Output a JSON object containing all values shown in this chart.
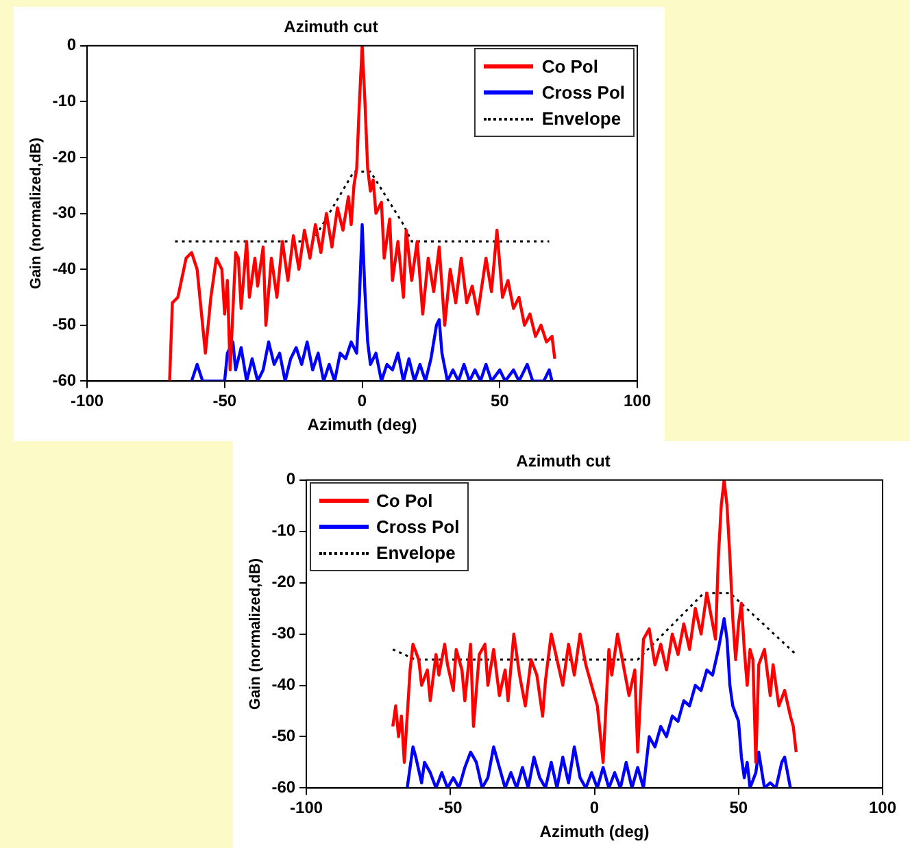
{
  "chart_data": [
    {
      "type": "line",
      "title": "Azimuth cut",
      "xlabel": "Azimuth (deg)",
      "ylabel": "Gain (normalized,dB)",
      "xlim": [
        -100,
        100
      ],
      "xticks": [
        -100,
        -50,
        0,
        50,
        100
      ],
      "ylim": [
        -60,
        0
      ],
      "yticks": [
        -60,
        -50,
        -40,
        -30,
        -20,
        -10,
        0
      ],
      "grid": false,
      "legend": "top right",
      "marker": "none",
      "series": [
        {
          "name": "Co Pol",
          "color": "#ff0000",
          "line_style": "solid",
          "x": [
            -70,
            -69,
            -67,
            -64,
            -62,
            -60,
            -58,
            -57,
            -55,
            -53,
            -51,
            -50,
            -49,
            -48,
            -46,
            -45,
            -44,
            -42,
            -41,
            -39,
            -38,
            -36,
            -35,
            -33,
            -31,
            -29,
            -27,
            -25,
            -23,
            -21,
            -19,
            -17,
            -15,
            -13,
            -11,
            -9,
            -7,
            -5,
            -4,
            -3,
            -2,
            -1,
            0,
            1,
            2,
            3,
            4,
            5,
            7,
            8,
            10,
            11,
            13,
            15,
            16,
            18,
            20,
            22,
            24,
            26,
            28,
            30,
            32,
            34,
            36,
            38,
            40,
            42,
            45,
            47,
            49,
            51,
            53,
            55,
            57,
            59,
            61,
            63,
            65,
            67,
            69,
            70
          ],
          "values": [
            -60,
            -46,
            -45,
            -38,
            -37,
            -40,
            -50,
            -55,
            -45,
            -38,
            -40,
            -48,
            -42,
            -58,
            -37,
            -38,
            -47,
            -35,
            -45,
            -38,
            -43,
            -36,
            -50,
            -38,
            -45,
            -35,
            -42,
            -34,
            -40,
            -33,
            -38,
            -32,
            -37,
            -30,
            -36,
            -29,
            -33,
            -27,
            -32,
            -25,
            -22,
            -10,
            0,
            -10,
            -22,
            -26,
            -24,
            -30,
            -28,
            -38,
            -31,
            -42,
            -35,
            -45,
            -33,
            -42,
            -35,
            -48,
            -38,
            -44,
            -36,
            -50,
            -40,
            -46,
            -38,
            -46,
            -43,
            -48,
            -38,
            -44,
            -33,
            -45,
            -42,
            -47,
            -45,
            -50,
            -48,
            -52,
            -50,
            -53,
            -52,
            -56
          ]
        },
        {
          "name": "Cross Pol",
          "color": "#0000ff",
          "line_style": "solid",
          "x": [
            -62,
            -60,
            -58,
            -50,
            -49,
            -47,
            -46,
            -44,
            -42,
            -40,
            -38,
            -36,
            -34,
            -32,
            -30,
            -28,
            -26,
            -24,
            -22,
            -20,
            -18,
            -16,
            -14,
            -12,
            -10,
            -8,
            -6,
            -4,
            -2,
            -1,
            0,
            1,
            2,
            3,
            5,
            7,
            9,
            11,
            13,
            15,
            17,
            19,
            21,
            23,
            25,
            27,
            28,
            29,
            31,
            33,
            35,
            37,
            39,
            41,
            43,
            45,
            47,
            50,
            52,
            55,
            57,
            60,
            62,
            66,
            68,
            69
          ],
          "values": [
            -60,
            -57,
            -60,
            -60,
            -55,
            -53,
            -58,
            -54,
            -60,
            -56,
            -60,
            -58,
            -53,
            -57,
            -55,
            -60,
            -56,
            -54,
            -57,
            -53,
            -58,
            -55,
            -60,
            -57,
            -60,
            -55,
            -56,
            -53,
            -55,
            -45,
            -32,
            -44,
            -53,
            -57,
            -55,
            -60,
            -57,
            -58,
            -55,
            -60,
            -56,
            -60,
            -57,
            -60,
            -56,
            -50,
            -49,
            -55,
            -60,
            -58,
            -60,
            -57,
            -60,
            -58,
            -60,
            -57,
            -60,
            -58,
            -60,
            -58,
            -60,
            -57,
            -60,
            -60,
            -58,
            -60
          ]
        },
        {
          "name": "Envelope",
          "color": "#000000",
          "line_style": "dotted",
          "x": [
            -68,
            -18,
            -3,
            3,
            15,
            18,
            68
          ],
          "values": [
            -35,
            -35,
            -22.5,
            -22.5,
            -32,
            -35,
            -35
          ]
        }
      ]
    },
    {
      "type": "line",
      "title": "Azimuth cut",
      "xlabel": "Azimuth (deg)",
      "ylabel": "Gain (normalized,dB)",
      "xlim": [
        -100,
        100
      ],
      "xticks": [
        -100,
        -50,
        0,
        50,
        100
      ],
      "ylim": [
        -60,
        0
      ],
      "yticks": [
        -60,
        -50,
        -40,
        -30,
        -20,
        -10,
        0
      ],
      "grid": false,
      "legend": "top left",
      "marker": "none",
      "series": [
        {
          "name": "Co Pol",
          "color": "#ff0000",
          "line_style": "solid",
          "x": [
            -70,
            -69,
            -68,
            -67,
            -66,
            -64,
            -63,
            -61,
            -60,
            -58,
            -57,
            -55,
            -54,
            -52,
            -51,
            -49,
            -48,
            -46,
            -45,
            -43,
            -42,
            -40,
            -38,
            -37,
            -35,
            -33,
            -31,
            -30,
            -28,
            -26,
            -24,
            -22,
            -20,
            -18,
            -17,
            -15,
            -13,
            -11,
            -9,
            -7,
            -5,
            -3,
            -1,
            1,
            3,
            5,
            6,
            8,
            10,
            12,
            14,
            15,
            17,
            19,
            21,
            23,
            25,
            27,
            29,
            31,
            33,
            35,
            37,
            39,
            41,
            42,
            43,
            44,
            45,
            46,
            47,
            48,
            49,
            50,
            51,
            52,
            53,
            54,
            55,
            56,
            57,
            59,
            61,
            62,
            64,
            66,
            68,
            69,
            70
          ],
          "values": [
            -48,
            -44,
            -50,
            -46,
            -55,
            -37,
            -32,
            -35,
            -40,
            -37,
            -43,
            -34,
            -38,
            -32,
            -36,
            -41,
            -33,
            -37,
            -43,
            -32,
            -48,
            -34,
            -32,
            -40,
            -33,
            -42,
            -37,
            -43,
            -30,
            -38,
            -44,
            -35,
            -38,
            -46,
            -39,
            -30,
            -35,
            -40,
            -32,
            -38,
            -30,
            -36,
            -40,
            -44,
            -55,
            -33,
            -38,
            -30,
            -36,
            -42,
            -37,
            -53,
            -31,
            -29,
            -36,
            -32,
            -37,
            -30,
            -34,
            -28,
            -33,
            -25,
            -30,
            -22,
            -28,
            -31,
            -15,
            -5,
            0,
            -5,
            -15,
            -27,
            -35,
            -28,
            -24,
            -33,
            -40,
            -33,
            -35,
            -55,
            -36,
            -33,
            -42,
            -36,
            -44,
            -41,
            -46,
            -48,
            -53
          ]
        },
        {
          "name": "Cross Pol",
          "color": "#0000ff",
          "line_style": "solid",
          "x": [
            -65,
            -64,
            -63,
            -62,
            -60,
            -59,
            -57,
            -55,
            -53,
            -51,
            -49,
            -47,
            -45,
            -43,
            -41,
            -39,
            -37,
            -35,
            -33,
            -31,
            -29,
            -27,
            -25,
            -23,
            -21,
            -19,
            -17,
            -15,
            -13,
            -11,
            -9,
            -7,
            -5,
            -3,
            -1,
            1,
            3,
            5,
            7,
            9,
            11,
            13,
            15,
            17,
            19,
            21,
            23,
            25,
            27,
            29,
            31,
            33,
            35,
            37,
            39,
            41,
            43,
            44,
            45,
            46,
            47,
            48,
            50,
            51,
            52,
            53,
            54,
            56,
            57,
            59,
            61,
            63,
            65,
            66,
            68
          ],
          "values": [
            -60,
            -56,
            -52,
            -54,
            -59,
            -55,
            -57,
            -60,
            -57,
            -60,
            -58,
            -60,
            -56,
            -53,
            -55,
            -60,
            -58,
            -52,
            -56,
            -60,
            -57,
            -60,
            -56,
            -60,
            -54,
            -58,
            -60,
            -55,
            -60,
            -54,
            -59,
            -52,
            -58,
            -60,
            -57,
            -60,
            -56,
            -60,
            -57,
            -60,
            -55,
            -60,
            -56,
            -60,
            -50,
            -52,
            -48,
            -50,
            -46,
            -47,
            -43,
            -44,
            -40,
            -41,
            -37,
            -38,
            -33,
            -30,
            -27,
            -31,
            -40,
            -44,
            -47,
            -54,
            -58,
            -55,
            -60,
            -57,
            -53,
            -60,
            -59,
            -60,
            -55,
            -54,
            -60
          ]
        },
        {
          "name": "Envelope",
          "color": "#000000",
          "line_style": "dotted",
          "x": [
            -70,
            -62,
            15,
            38,
            47,
            70
          ],
          "values": [
            -33,
            -35,
            -35,
            -22,
            -22,
            -34
          ]
        }
      ]
    }
  ]
}
